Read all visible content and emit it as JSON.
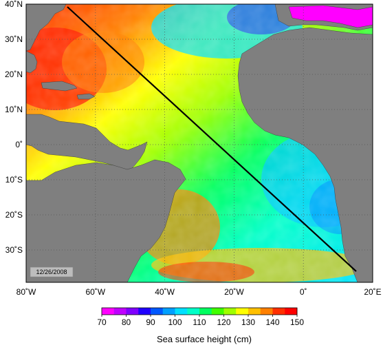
{
  "map": {
    "date_stamp": "12/26/2008",
    "lon_labels": [
      "80˚W",
      "60˚W",
      "40˚W",
      "20˚W",
      "0˚",
      "20˚E"
    ],
    "lat_labels": [
      "40˚N",
      "30˚N",
      "20˚N",
      "10˚N",
      "0˚",
      "10˚S",
      "20˚S",
      "30˚S"
    ],
    "land_color": "#7f7f7f",
    "track_color": "#000000",
    "colorbar": {
      "title": "Sea surface height (cm)",
      "ticks": [
        "70",
        "80",
        "90",
        "100",
        "110",
        "120",
        "130",
        "140",
        "150"
      ],
      "colors": [
        "#ff00ff",
        "#c000ff",
        "#8000ff",
        "#2000ff",
        "#0058ff",
        "#00a0ff",
        "#00e0ff",
        "#00ffc8",
        "#00ff60",
        "#40ff00",
        "#a0ff00",
        "#ffff00",
        "#ffc000",
        "#ff8000",
        "#ff3000",
        "#ff0000"
      ]
    }
  }
}
